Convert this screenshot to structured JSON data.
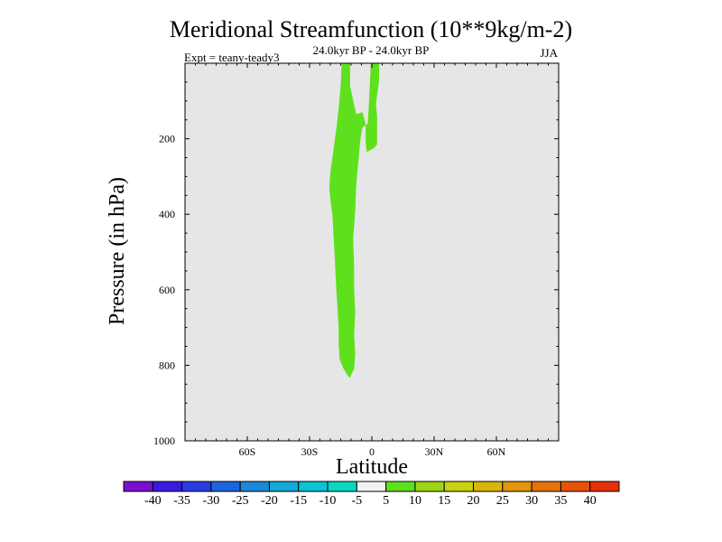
{
  "chart_data": {
    "type": "contour",
    "title": "Meridional Streamfunction (10**9kg/m-2)",
    "subtitle": "24.0kyr BP - 24.0kyr BP",
    "left_label": "Expt = teany-teady3",
    "right_label": "JJA",
    "xlabel": "Latitude",
    "ylabel": "Pressure (in hPa)",
    "xlim": [
      -90,
      90
    ],
    "ylim": [
      1000,
      0
    ],
    "x_ticks": [
      {
        "value": -60,
        "label": "60S"
      },
      {
        "value": -30,
        "label": "30S"
      },
      {
        "value": 0,
        "label": "0"
      },
      {
        "value": 30,
        "label": "30N"
      },
      {
        "value": 60,
        "label": "60N"
      }
    ],
    "y_ticks": [
      {
        "value": 200,
        "label": "200"
      },
      {
        "value": 400,
        "label": "400"
      },
      {
        "value": 600,
        "label": "600"
      },
      {
        "value": 800,
        "label": "800"
      },
      {
        "value": 1000,
        "label": "1000"
      }
    ],
    "background_color": "#e6e6e6",
    "filled_regions": [
      {
        "level_range": [
          5,
          10
        ],
        "color": "#5fe01d",
        "outline": [
          [
            -14.5,
            0
          ],
          [
            -10.5,
            0
          ],
          [
            -10.5,
            60
          ],
          [
            -8.5,
            110
          ],
          [
            -7.5,
            135
          ],
          [
            -4.5,
            130
          ],
          [
            -3,
            160
          ],
          [
            -3,
            210
          ],
          [
            -2.5,
            235
          ],
          [
            1,
            225
          ],
          [
            2.5,
            215
          ],
          [
            2.5,
            140
          ],
          [
            2,
            110
          ],
          [
            2.5,
            85
          ],
          [
            3.5,
            45
          ],
          [
            3.5,
            0
          ],
          [
            -0.5,
            0
          ],
          [
            -1,
            60
          ],
          [
            -1.5,
            120
          ],
          [
            -2,
            160
          ],
          [
            -4.5,
            170
          ],
          [
            -5.5,
            200
          ],
          [
            -6.5,
            260
          ],
          [
            -7.5,
            320
          ],
          [
            -8,
            390
          ],
          [
            -8.5,
            430
          ],
          [
            -9,
            460
          ],
          [
            -8.5,
            540
          ],
          [
            -8.5,
            600
          ],
          [
            -8,
            660
          ],
          [
            -8.5,
            720
          ],
          [
            -8,
            770
          ],
          [
            -8.5,
            810
          ],
          [
            -9.5,
            820
          ],
          [
            -10.5,
            833
          ],
          [
            -11.5,
            828
          ],
          [
            -13.5,
            810
          ],
          [
            -15.5,
            785
          ],
          [
            -16,
            740
          ],
          [
            -16,
            700
          ],
          [
            -16.5,
            650
          ],
          [
            -17,
            610
          ],
          [
            -17.5,
            560
          ],
          [
            -18,
            500
          ],
          [
            -18.5,
            450
          ],
          [
            -19,
            400
          ],
          [
            -20,
            360
          ],
          [
            -20.5,
            330
          ],
          [
            -20,
            290
          ],
          [
            -19,
            250
          ],
          [
            -18,
            210
          ],
          [
            -17,
            170
          ],
          [
            -16,
            120
          ],
          [
            -15,
            60
          ]
        ]
      }
    ],
    "colorbar": {
      "labels": [
        "-40",
        "-35",
        "-30",
        "-25",
        "-20",
        "-15",
        "-10",
        "-5",
        "5",
        "10",
        "15",
        "20",
        "25",
        "30",
        "35",
        "40"
      ],
      "colors": [
        "#7a0fd2",
        "#3b1ae0",
        "#2a3be6",
        "#1d64de",
        "#1b8ad8",
        "#12aad8",
        "#0cc3d6",
        "#09d8bf",
        "#f2f2f2",
        "#5fe01d",
        "#9dd513",
        "#c8d20f",
        "#d7b60c",
        "#e1950b",
        "#e6730a",
        "#e85309",
        "#e83008"
      ]
    }
  }
}
